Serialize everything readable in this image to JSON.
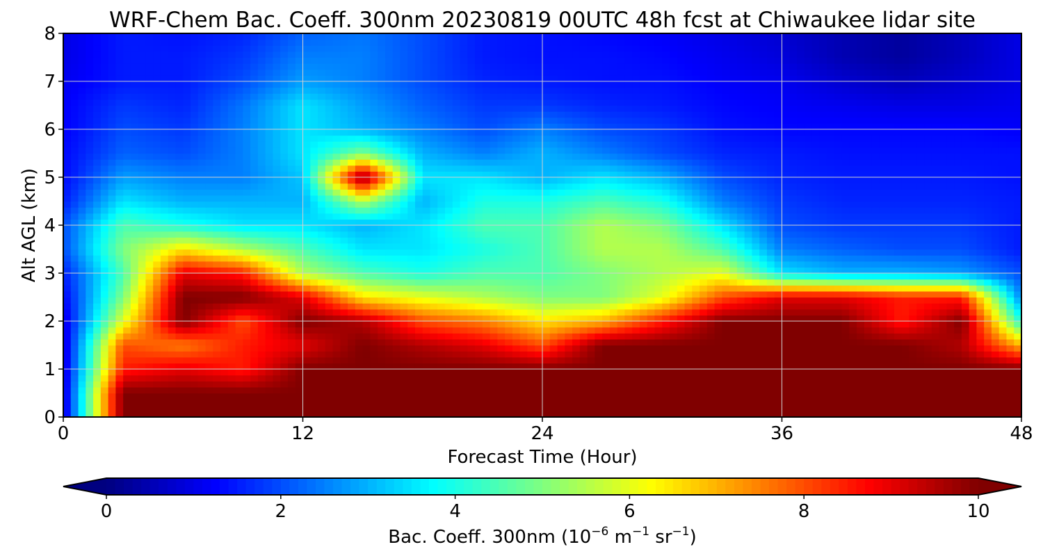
{
  "chart_data": {
    "type": "heatmap",
    "title": "WRF-Chem Bac. Coeff. 300nm  20230819 00UTC 48h fcst at Chiwaukee lidar site",
    "xlabel": "Forecast Time (Hour)",
    "ylabel": "Alt AGL (km)",
    "xlim": [
      0,
      48
    ],
    "ylim": [
      0,
      8
    ],
    "xticks": [
      0,
      12,
      24,
      36,
      48
    ],
    "yticks": [
      0,
      1,
      2,
      3,
      4,
      5,
      6,
      7,
      8
    ],
    "grid": true,
    "colorscale": "jet",
    "colorbar": {
      "label": "Bac. Coeff. 300nm",
      "units_base": "10",
      "units_exp": "−6",
      "units_m": "m",
      "units_m_exp": "−1",
      "units_sr": "sr",
      "units_sr_exp": "−1",
      "range": [
        0,
        10
      ],
      "ticks": [
        0,
        2,
        4,
        6,
        8,
        10
      ],
      "extend": "both"
    },
    "x": [
      0,
      3,
      6,
      9,
      12,
      15,
      18,
      21,
      24,
      27,
      30,
      33,
      36,
      39,
      42,
      45,
      48
    ],
    "y": [
      0,
      0.5,
      1,
      1.5,
      2,
      2.5,
      3,
      3.5,
      4,
      4.5,
      5,
      5.5,
      6,
      6.5,
      7,
      7.5,
      8
    ],
    "z": [
      [
        0.8,
        10,
        10,
        10,
        10,
        10,
        10,
        10,
        10,
        10,
        10,
        10,
        10,
        10,
        10,
        10,
        10
      ],
      [
        0.8,
        10,
        10,
        10,
        10,
        10,
        10,
        10,
        10,
        10,
        10,
        10,
        10,
        10,
        10,
        10,
        10
      ],
      [
        0.8,
        8.5,
        9,
        8.5,
        10,
        10,
        10,
        10,
        10,
        10,
        10,
        10,
        10,
        10,
        10,
        10,
        10
      ],
      [
        0.8,
        8,
        7.5,
        8.5,
        9,
        10,
        9.5,
        9,
        8,
        10,
        10,
        10,
        10,
        10,
        10,
        9.5,
        7
      ],
      [
        0.9,
        6,
        10,
        8,
        10,
        9.5,
        8,
        7.5,
        6.5,
        7,
        8.5,
        10,
        10,
        10,
        8.5,
        10,
        4
      ],
      [
        1.2,
        5,
        10,
        10,
        9,
        6.5,
        6,
        5.5,
        5,
        5,
        6,
        8,
        9,
        9,
        8.5,
        8.5,
        2.5
      ],
      [
        1.5,
        4.5,
        9,
        8.5,
        5.5,
        4.5,
        4,
        4.5,
        4.5,
        5,
        5.5,
        6,
        3.5,
        3,
        3,
        2.8,
        2
      ],
      [
        2,
        5,
        6.5,
        5.5,
        4.5,
        3.5,
        3.5,
        4,
        4.5,
        5.5,
        5.5,
        4.5,
        2.5,
        2.2,
        2,
        2,
        1.5
      ],
      [
        2,
        4.5,
        4,
        3.5,
        3.5,
        3,
        3.5,
        4.5,
        4.5,
        5.5,
        5,
        3.5,
        2,
        1.8,
        1.8,
        1.8,
        1.5
      ],
      [
        1.5,
        3.5,
        3,
        3,
        3,
        5.5,
        3,
        4,
        4,
        4.5,
        4,
        2.5,
        1.8,
        1.6,
        1.6,
        1.6,
        1.5
      ],
      [
        1.3,
        2.8,
        2.5,
        2.5,
        3.2,
        10,
        3.5,
        3.5,
        3,
        3.5,
        3,
        2,
        1.6,
        1.5,
        1.5,
        1.5,
        1.4
      ],
      [
        1.3,
        2.2,
        2,
        2.5,
        3.5,
        5,
        3,
        2.5,
        3,
        2.5,
        2,
        1.6,
        1.5,
        1.4,
        1.4,
        1.4,
        1.4
      ],
      [
        1.2,
        2,
        1.8,
        2.5,
        3.5,
        3,
        2.5,
        2,
        2.5,
        2,
        1.8,
        1.4,
        1.3,
        1.3,
        1.3,
        1.3,
        1.2
      ],
      [
        1.2,
        1.8,
        1.6,
        2.4,
        3.5,
        2.8,
        2.2,
        1.8,
        1.8,
        1.6,
        1.5,
        1.3,
        1.2,
        1.1,
        1,
        1,
        1.1
      ],
      [
        1.1,
        1.5,
        1.5,
        2,
        2.8,
        2.5,
        2,
        1.6,
        1.5,
        1.4,
        1.4,
        1.2,
        1.1,
        0.8,
        0.6,
        0.8,
        1
      ],
      [
        1,
        1.5,
        1.5,
        1.8,
        2.5,
        2.5,
        2,
        1.5,
        1.4,
        1.4,
        1.3,
        1.1,
        0.9,
        0.5,
        0.3,
        0.6,
        1
      ],
      [
        1,
        1.5,
        1.4,
        1.6,
        2.2,
        2.4,
        2,
        1.5,
        1.4,
        1.3,
        1.2,
        1,
        0.8,
        0.5,
        0.3,
        0.6,
        1
      ]
    ]
  }
}
